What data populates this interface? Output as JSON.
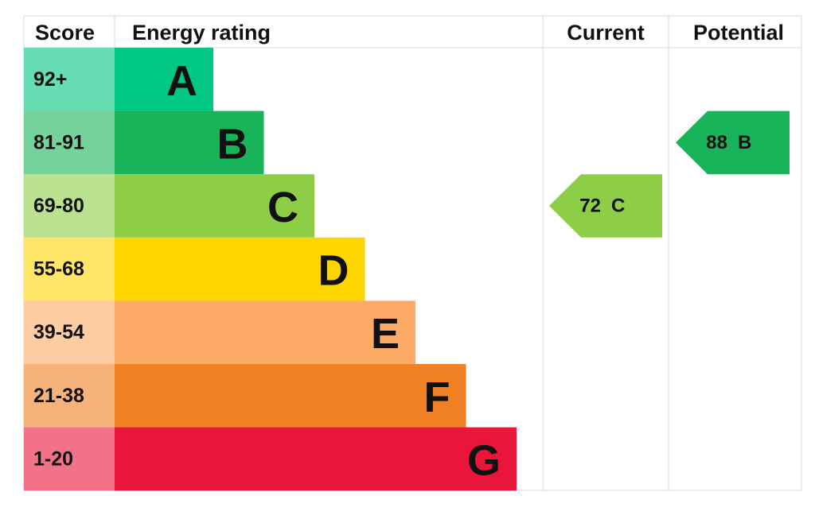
{
  "header": {
    "score": "Score",
    "rating": "Energy rating",
    "current": "Current",
    "potential": "Potential"
  },
  "bands": [
    {
      "score": "92+",
      "letter": "A",
      "color": "#00c781"
    },
    {
      "score": "81-91",
      "letter": "B",
      "color": "#19b459"
    },
    {
      "score": "69-80",
      "letter": "C",
      "color": "#8dce46"
    },
    {
      "score": "55-68",
      "letter": "D",
      "color": "#ffd500"
    },
    {
      "score": "39-54",
      "letter": "E",
      "color": "#fcaa65"
    },
    {
      "score": "21-38",
      "letter": "F",
      "color": "#ef8023"
    },
    {
      "score": "1-20",
      "letter": "G",
      "color": "#e9153b"
    }
  ],
  "current": {
    "value": 72,
    "letter": "C"
  },
  "potential": {
    "value": 88,
    "letter": "B"
  }
}
